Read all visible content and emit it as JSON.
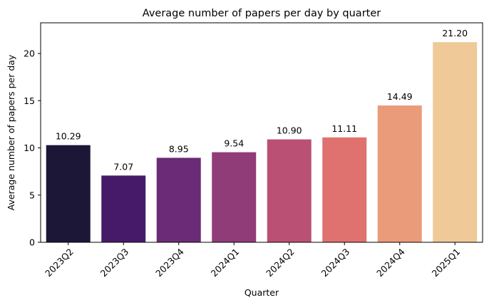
{
  "chart_data": {
    "type": "bar",
    "title": "Average number of papers per day by quarter",
    "xlabel": "Quarter",
    "ylabel": "Average number of papers per day",
    "categories": [
      "2023Q2",
      "2023Q3",
      "2023Q4",
      "2024Q1",
      "2024Q2",
      "2024Q3",
      "2024Q4",
      "2025Q1"
    ],
    "values": [
      10.29,
      7.07,
      8.95,
      9.54,
      10.9,
      11.11,
      14.49,
      21.2
    ],
    "data_labels": [
      "10.29",
      "7.07",
      "8.95",
      "9.54",
      "10.90",
      "11.11",
      "14.49",
      "21.20"
    ],
    "colors": [
      "#1c1637",
      "#461a69",
      "#6b2b76",
      "#903c79",
      "#ba5073",
      "#df726f",
      "#ea9c7a",
      "#f0c998"
    ],
    "ylim": [
      0,
      23.25
    ],
    "yticks": [
      0,
      5,
      10,
      15,
      20
    ],
    "grid": false,
    "legend": null
  }
}
